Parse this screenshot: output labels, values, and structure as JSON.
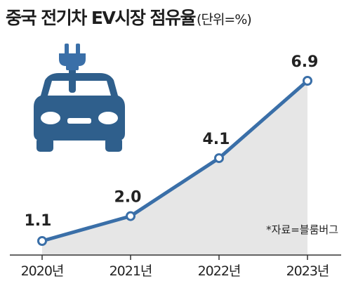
{
  "header": {
    "title": "중국 전기차 EV시장 점유율",
    "unit": "(단위=%)"
  },
  "source": "*자료=블룸버그",
  "colors": {
    "line": "#3a6fa8",
    "area": "#e6e6e6",
    "icon": "#2f5f8c",
    "marker_fill": "#ffffff",
    "text": "#222222"
  },
  "icon": "car-with-plug-icon",
  "chart_data": {
    "type": "line",
    "categories": [
      "2020년",
      "2021년",
      "2022년",
      "2023년"
    ],
    "values": [
      1.1,
      2.0,
      4.1,
      6.9
    ],
    "value_labels": [
      "1.1",
      "2.0",
      "4.1",
      "6.9"
    ],
    "title": "중국 전기차 EV시장 점유율",
    "unit": "(단위=%)",
    "area_fill": true,
    "grid": false,
    "legend": "none"
  }
}
